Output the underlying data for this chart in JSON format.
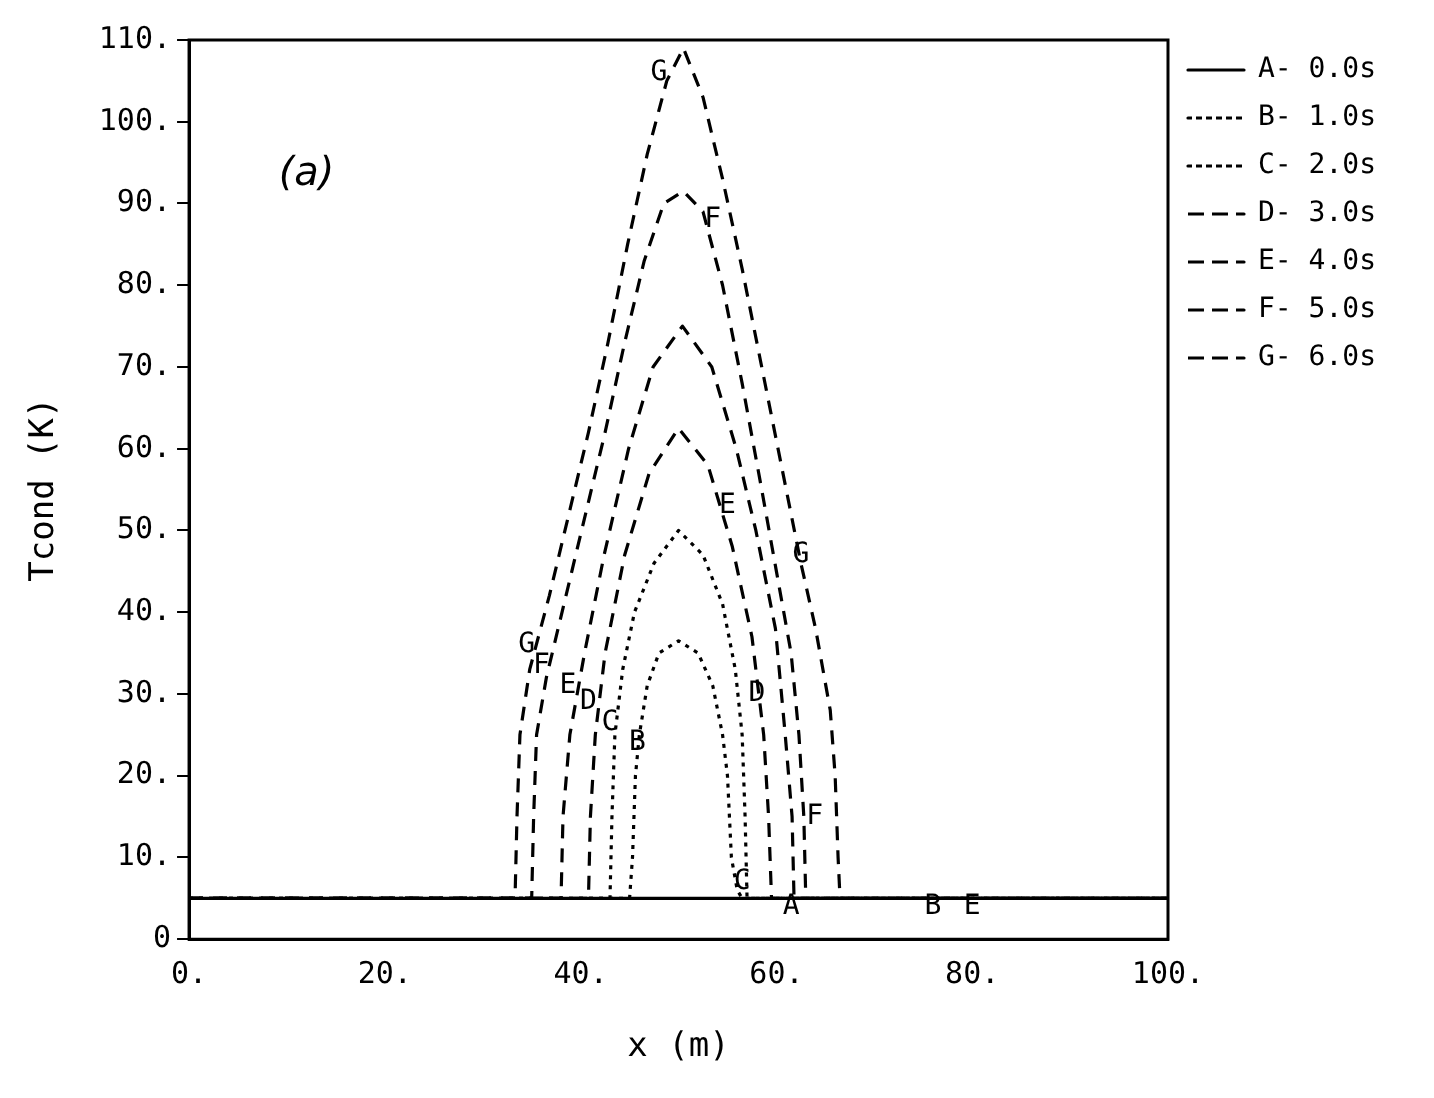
{
  "chart_data": {
    "type": "line",
    "xlabel": "x (m)",
    "ylabel": "Tcond (K)",
    "xlim": [
      0,
      100
    ],
    "xticks": [
      {
        "value": 0,
        "label": "0."
      },
      {
        "value": 20,
        "label": "20."
      },
      {
        "value": 40,
        "label": "40."
      },
      {
        "value": 60,
        "label": "60."
      },
      {
        "value": 80,
        "label": "80."
      },
      {
        "value": 100,
        "label": "100."
      }
    ],
    "ylim": [
      0,
      110
    ],
    "yticks": [
      0,
      {
        "value": 10,
        "label": "10."
      },
      {
        "value": 20,
        "label": "20."
      },
      {
        "value": 30,
        "label": "30."
      },
      {
        "value": 40,
        "label": "40."
      },
      {
        "value": 50,
        "label": "50."
      },
      {
        "value": 60,
        "label": "60."
      },
      {
        "value": 70,
        "label": "70."
      },
      {
        "value": 80,
        "label": "80."
      },
      {
        "value": 90,
        "label": "90."
      },
      {
        "value": 100,
        "label": "100."
      },
      {
        "value": 110,
        "label": "110."
      }
    ],
    "grid": false,
    "legend": "right",
    "marker": "none",
    "series": [
      {
        "name": "A- 0.0s",
        "color": "#000000",
        "line_style": "solid",
        "x": [
          0,
          100
        ],
        "values": [
          5,
          5
        ]
      },
      {
        "name": "B- 1.0s",
        "color": "#000000",
        "line_style": "dotted",
        "x": [
          0,
          45,
          45.3,
          45.6,
          46,
          46.8,
          48,
          50,
          52,
          53.5,
          54.5,
          55,
          55.4,
          56,
          56.5,
          100
        ],
        "values": [
          5,
          5,
          10,
          20,
          25,
          31,
          35,
          36.5,
          35,
          31,
          25,
          20,
          10,
          6,
          5,
          5
        ]
      },
      {
        "name": "C- 2.0s",
        "color": "#000000",
        "line_style": "dotted",
        "x": [
          0,
          43,
          43.2,
          43.5,
          44.3,
          45.5,
          47.5,
          50,
          52.5,
          54.5,
          55.8,
          56.5,
          56.8,
          57,
          100
        ],
        "values": [
          5,
          5,
          15,
          25,
          33,
          40,
          46,
          50,
          47,
          41,
          33,
          25,
          15,
          5,
          5
        ]
      },
      {
        "name": "D- 3.0s",
        "color": "#000000",
        "line_style": "dashed",
        "x": [
          0,
          40.8,
          41,
          41.5,
          42.5,
          44.5,
          47,
          50,
          53,
          55.5,
          57.5,
          58.7,
          59.2,
          59.5,
          100
        ],
        "values": [
          5,
          5,
          15,
          25,
          35,
          47,
          57,
          62.5,
          58,
          48,
          37,
          25,
          15,
          5,
          5
        ]
      },
      {
        "name": "E- 4.0s",
        "color": "#000000",
        "line_style": "dashed",
        "x": [
          0,
          38,
          38.2,
          38.9,
          40.4,
          42.4,
          44.9,
          47.4,
          50.4,
          53.4,
          55.9,
          57.9,
          59.9,
          60.9,
          61.6,
          61.8,
          100
        ],
        "values": [
          5,
          5,
          15,
          25,
          35,
          47,
          60,
          70,
          75,
          70,
          60,
          50,
          38,
          25,
          15,
          5,
          5
        ]
      },
      {
        "name": "F- 5.0s",
        "color": "#000000",
        "line_style": "dashed",
        "x": [
          0,
          35,
          35.2,
          35.5,
          36.5,
          38.5,
          40.5,
          42.5,
          44.5,
          46.5,
          48.5,
          50.5,
          52.5,
          54.5,
          56.5,
          58.5,
          60,
          61.5,
          62.3,
          62.8,
          63,
          100
        ],
        "values": [
          5,
          5,
          15,
          25,
          32,
          42,
          52,
          62,
          73,
          83,
          90,
          91.5,
          89,
          80,
          68,
          55,
          45,
          35,
          25,
          15,
          5,
          5
        ]
      },
      {
        "name": "G- 6.0s",
        "color": "#000000",
        "line_style": "dashed",
        "x": [
          0,
          33.3,
          33.5,
          33.8,
          34.8,
          36.8,
          38.8,
          40.8,
          42.8,
          44.8,
          46.8,
          48.8,
          50.5,
          52.5,
          54.5,
          56.5,
          58.5,
          60.5,
          62.5,
          64,
          65.5,
          66,
          66.3,
          66.5,
          100
        ],
        "values": [
          5,
          5,
          15,
          25,
          33,
          42,
          52,
          62,
          73,
          85,
          96,
          105,
          109,
          103,
          93,
          82,
          70,
          58,
          46,
          38,
          28,
          20,
          10,
          5,
          5
        ]
      }
    ],
    "annotations": [
      "(a)",
      {
        "text": "G",
        "x": 48,
        "y": 106
      },
      {
        "text": "F",
        "x": 53.5,
        "y": 88
      },
      {
        "text": "E",
        "x": 55,
        "y": 53
      },
      {
        "text": "G",
        "x": 62.5,
        "y": 47
      },
      {
        "text": "G",
        "x": 34.5,
        "y": 36
      },
      {
        "text": "F",
        "x": 36,
        "y": 33.5
      },
      {
        "text": "E",
        "x": 38.7,
        "y": 31
      },
      {
        "text": "D",
        "x": 40.8,
        "y": 29
      },
      {
        "text": "C",
        "x": 43,
        "y": 26.5
      },
      {
        "text": "B",
        "x": 45.8,
        "y": 24
      },
      {
        "text": "D",
        "x": 58,
        "y": 30
      },
      {
        "text": "F",
        "x": 63.9,
        "y": 15
      },
      {
        "text": "C",
        "x": 56.5,
        "y": 7
      },
      {
        "text": "A",
        "x": 61.5,
        "y": 4
      },
      {
        "text": "B",
        "x": 76,
        "y": 4
      },
      {
        "text": "E",
        "x": 80,
        "y": 4
      }
    ]
  }
}
